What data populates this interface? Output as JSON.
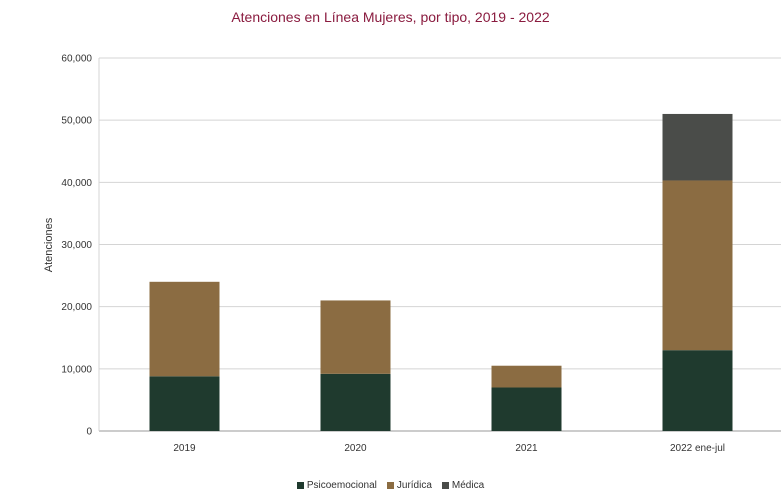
{
  "chart_data": {
    "type": "bar",
    "stacked": true,
    "title": "Atenciones en Línea Mujeres, por tipo, 2019 - 2022",
    "xlabel": "",
    "ylabel": "Atenciones",
    "categories": [
      "2019",
      "2020",
      "2021",
      "2022 ene-jul"
    ],
    "ylim": [
      0,
      60000
    ],
    "yticks": [
      0,
      10000,
      20000,
      30000,
      40000,
      50000,
      60000
    ],
    "ytick_labels": [
      "0",
      "10,000",
      "20,000",
      "30,000",
      "40,000",
      "50,000",
      "60,000"
    ],
    "grid": true,
    "legend_position": "bottom",
    "series": [
      {
        "name": "Psicoemocional",
        "color": "#1f3a2e",
        "values": [
          8800,
          9200,
          7000,
          13000
        ]
      },
      {
        "name": "Jurídica",
        "color": "#8b6c42",
        "values": [
          15200,
          11800,
          3500,
          27300
        ]
      },
      {
        "name": "Médica",
        "color": "#4a4c49",
        "values": [
          0,
          0,
          0,
          10700
        ]
      }
    ]
  }
}
